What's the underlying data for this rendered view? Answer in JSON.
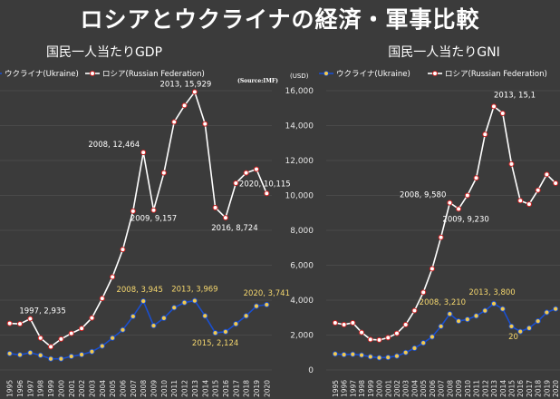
{
  "title": "ロシアとウクライナの経済・軍事比較",
  "colors": {
    "russia": "#ffffff",
    "ukraine": "#1a4fcf",
    "ukraine_fill": "#f2c94c",
    "russia_marker": "#d62020",
    "background": "#3b3b3b",
    "grid": "#4f4f4f"
  },
  "chart_data": [
    {
      "type": "line",
      "title": "国民一人当たりGDP",
      "source": "(Source:IMF)",
      "ylabel": "",
      "xlabel": "",
      "ylim": [
        0,
        16000
      ],
      "yticks": [],
      "x": [
        "1995",
        "1996",
        "1997",
        "1998",
        "1999",
        "2000",
        "2001",
        "2002",
        "2003",
        "2004",
        "2005",
        "2006",
        "2007",
        "2008",
        "2009",
        "2010",
        "2011",
        "2012",
        "2013",
        "2014",
        "2015",
        "2016",
        "2017",
        "2018",
        "2019",
        "2020"
      ],
      "series": [
        {
          "name": "ウクライナ(Ukraine)",
          "values": [
            940,
            870,
            990,
            840,
            640,
            640,
            780,
            880,
            1050,
            1370,
            1830,
            2300,
            3070,
            3945,
            2540,
            2970,
            3570,
            3860,
            3969,
            3100,
            2124,
            2190,
            2640,
            3100,
            3660,
            3741
          ]
        },
        {
          "name": "ロシア(Russian Federation)",
          "values": [
            2670,
            2640,
            2935,
            1830,
            1330,
            1770,
            2100,
            2380,
            2980,
            4100,
            5330,
            6900,
            9100,
            12464,
            9157,
            11290,
            14210,
            15150,
            15929,
            14100,
            9300,
            8724,
            10700,
            11290,
            11500,
            10115
          ]
        }
      ],
      "annotations": [
        {
          "series": 1,
          "x": "1997",
          "text": "1997, 2,935"
        },
        {
          "series": 1,
          "x": "2008",
          "text": "2008, 12,464"
        },
        {
          "series": 1,
          "x": "2009",
          "text": "2009, 9,157"
        },
        {
          "series": 1,
          "x": "2013",
          "text": "2013, 15,929"
        },
        {
          "series": 1,
          "x": "2016",
          "text": "2016, 8,724"
        },
        {
          "series": 1,
          "x": "2020",
          "text": "2020, 10,115"
        },
        {
          "series": 0,
          "x": "2008",
          "text": "2008, 3,945"
        },
        {
          "series": 0,
          "x": "2013",
          "text": "2013, 3,969"
        },
        {
          "series": 0,
          "x": "2015",
          "text": "2015, 2,124"
        },
        {
          "series": 0,
          "x": "2020",
          "text": "2020, 3,741"
        }
      ]
    },
    {
      "type": "line",
      "title": "国民一人当たりGNI",
      "unit": "(USD)",
      "ylim": [
        0,
        16000
      ],
      "yticks": [
        "0",
        "2,000",
        "4,000",
        "6,000",
        "8,000",
        "10,000",
        "12,000",
        "14,000",
        "16,000"
      ],
      "x": [
        "1995",
        "1996",
        "1997",
        "1998",
        "1999",
        "2000",
        "2001",
        "2002",
        "2003",
        "2004",
        "2005",
        "2006",
        "2007",
        "2008",
        "2009",
        "2010",
        "2011",
        "2012",
        "2013",
        "2014",
        "2015",
        "2016",
        "2017",
        "2018",
        "2019",
        "2020"
      ],
      "series": [
        {
          "name": "ウクライナ(Ukraine)",
          "values": [
            920,
            880,
            900,
            850,
            760,
            700,
            720,
            800,
            1000,
            1250,
            1550,
            1900,
            2500,
            3210,
            2800,
            2900,
            3100,
            3400,
            3800,
            3500,
            2500,
            2200,
            2400,
            2800,
            3300,
            3500
          ]
        },
        {
          "name": "ロシア(Russian Federation)",
          "values": [
            2700,
            2600,
            2700,
            2150,
            1750,
            1720,
            1850,
            2100,
            2600,
            3400,
            4450,
            5800,
            7600,
            9580,
            9230,
            10000,
            11000,
            13500,
            15100,
            14700,
            11800,
            9700,
            9500,
            10300,
            11200,
            10700
          ]
        }
      ],
      "annotations": [
        {
          "series": 1,
          "x": "2008",
          "text": "2008, 9,580"
        },
        {
          "series": 1,
          "x": "2009",
          "text": "2009, 9,230"
        },
        {
          "series": 1,
          "x": "2013",
          "text": "2013, 15,1"
        },
        {
          "series": 0,
          "x": "2008",
          "text": "2008, 3,210"
        },
        {
          "series": 0,
          "x": "2013",
          "text": "2013, 3,800"
        },
        {
          "series": 0,
          "x": "2015",
          "text": "20"
        }
      ]
    }
  ]
}
